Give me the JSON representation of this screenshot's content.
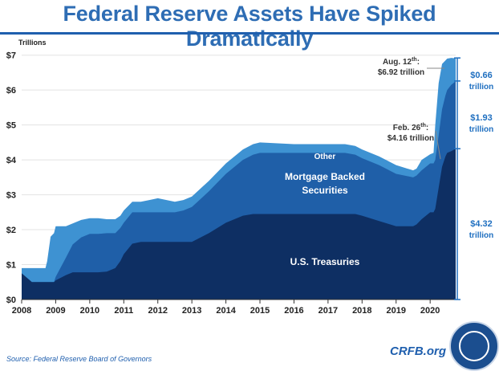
{
  "title": "Federal Reserve Assets Have Spiked Dramatically",
  "source": "Source: Federal Reserve Board of Governors",
  "logo": "CRFB.org",
  "colors": {
    "title": "#2e6db4",
    "treasuries": "#0e2f63",
    "mbs": "#1f5fa8",
    "other": "#3e92d2",
    "annotation_text": "#333333",
    "bracket_text": "#1f6fc0"
  },
  "chart_data": {
    "type": "area",
    "stacked": true,
    "ylabel": "Trillions",
    "xlim": [
      2008,
      2020.75
    ],
    "ylim": [
      0,
      7.2
    ],
    "x_ticks": [
      "2008",
      "2009",
      "2010",
      "2011",
      "2012",
      "2013",
      "2014",
      "2015",
      "2016",
      "2017",
      "2018",
      "2019",
      "2020"
    ],
    "y_ticks": [
      "$0",
      "$1",
      "$2",
      "$3",
      "$4",
      "$5",
      "$6",
      "$7"
    ],
    "x": [
      2008.0,
      2008.3,
      2008.7,
      2008.75,
      2008.85,
      2008.95,
      2009.0,
      2009.3,
      2009.5,
      2009.75,
      2010.0,
      2010.25,
      2010.5,
      2010.75,
      2010.9,
      2011.0,
      2011.25,
      2011.5,
      2011.75,
      2012.0,
      2012.5,
      2012.75,
      2013.0,
      2013.5,
      2014.0,
      2014.5,
      2014.8,
      2015.0,
      2016.0,
      2017.0,
      2017.5,
      2017.8,
      2018.0,
      2018.5,
      2019.0,
      2019.5,
      2019.6,
      2019.75,
      2020.0,
      2020.1,
      2020.15,
      2020.25,
      2020.35,
      2020.45,
      2020.5,
      2020.62,
      2020.75
    ],
    "series": [
      {
        "name": "U.S. Treasuries",
        "values": [
          0.75,
          0.5,
          0.5,
          0.5,
          0.5,
          0.5,
          0.55,
          0.7,
          0.78,
          0.78,
          0.78,
          0.78,
          0.8,
          0.9,
          1.1,
          1.3,
          1.6,
          1.65,
          1.65,
          1.65,
          1.65,
          1.65,
          1.65,
          1.9,
          2.2,
          2.4,
          2.45,
          2.45,
          2.45,
          2.45,
          2.45,
          2.45,
          2.4,
          2.25,
          2.1,
          2.1,
          2.15,
          2.3,
          2.5,
          2.5,
          2.6,
          3.2,
          3.8,
          4.1,
          4.2,
          4.25,
          4.32
        ]
      },
      {
        "name": "Mortgage Backed Securities",
        "values": [
          0,
          0,
          0,
          0,
          0,
          0,
          0.1,
          0.5,
          0.8,
          1.0,
          1.1,
          1.1,
          1.1,
          1.0,
          0.95,
          0.9,
          0.9,
          0.85,
          0.85,
          0.85,
          0.85,
          0.9,
          1.0,
          1.2,
          1.4,
          1.6,
          1.7,
          1.75,
          1.75,
          1.75,
          1.75,
          1.7,
          1.65,
          1.6,
          1.5,
          1.4,
          1.4,
          1.4,
          1.4,
          1.4,
          1.4,
          1.5,
          1.65,
          1.75,
          1.8,
          1.9,
          1.93
        ]
      },
      {
        "name": "Other",
        "values": [
          0.15,
          0.4,
          0.4,
          0.6,
          1.3,
          1.4,
          1.45,
          0.9,
          0.6,
          0.5,
          0.45,
          0.45,
          0.4,
          0.4,
          0.35,
          0.35,
          0.3,
          0.3,
          0.35,
          0.4,
          0.3,
          0.3,
          0.3,
          0.3,
          0.3,
          0.3,
          0.3,
          0.3,
          0.25,
          0.25,
          0.25,
          0.25,
          0.25,
          0.25,
          0.25,
          0.2,
          0.2,
          0.3,
          0.26,
          0.3,
          1.0,
          1.5,
          1.3,
          1.0,
          0.9,
          0.77,
          0.66
        ]
      }
    ],
    "labels": {
      "treasuries": "U.S. Treasuries",
      "mbs_line1": "Mortgage Backed",
      "mbs_line2": "Securities",
      "other": "Other"
    },
    "annotations": {
      "aug_line1": "Aug. 12",
      "aug_sup": "th",
      "aug_colon": ":",
      "aug_line2": "$6.92 trillion",
      "feb_line1": "Feb. 26",
      "feb_sup": "th",
      "feb_colon": ":",
      "feb_line2": "$4.16 trillion"
    },
    "brackets": [
      {
        "line1": "$0.66",
        "line2": "trillion"
      },
      {
        "line1": "$1.93",
        "line2": "trillion"
      },
      {
        "line1": "$4.32",
        "line2": "trillion"
      }
    ]
  }
}
